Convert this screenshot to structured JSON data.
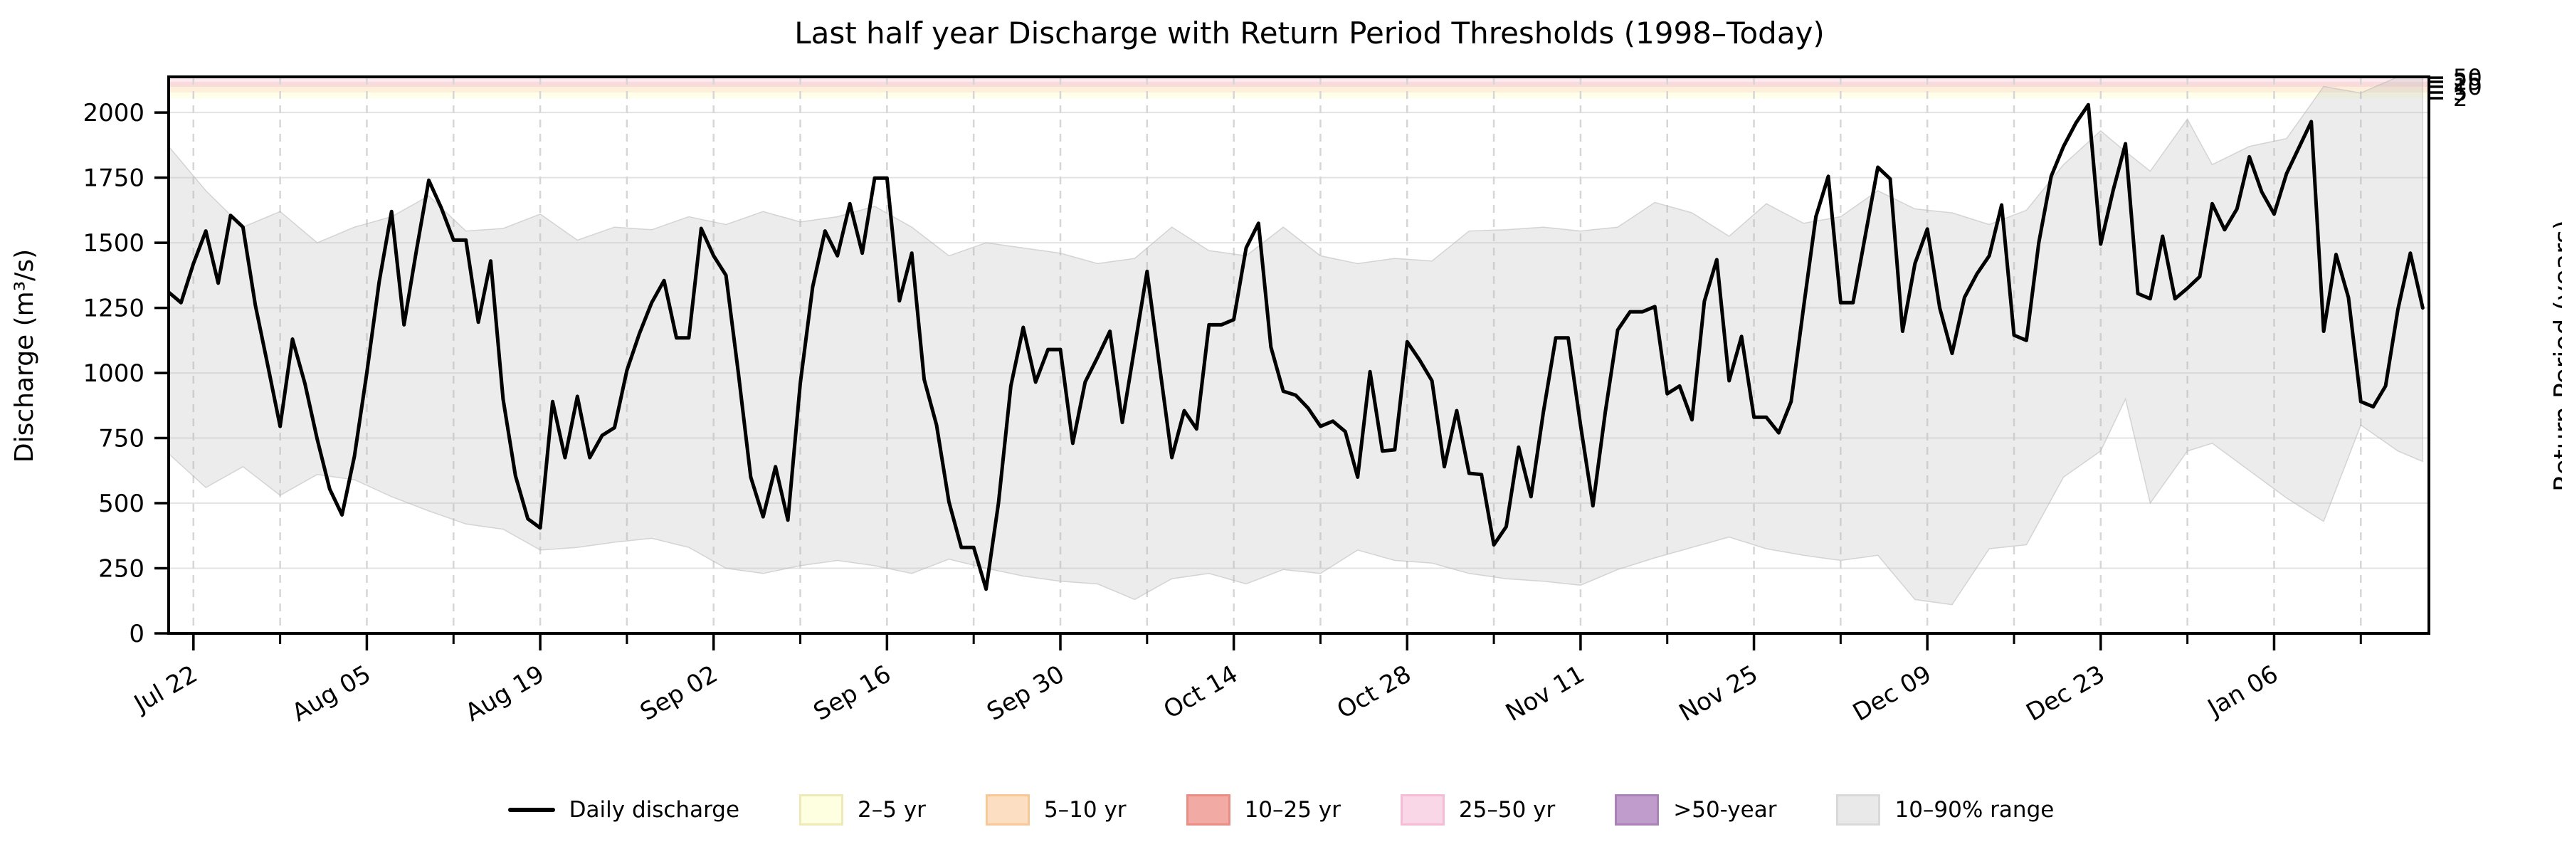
{
  "title": "Last half year Discharge with Return Period Thresholds (1998–Today)",
  "axes": {
    "y_left": {
      "label": "Discharge (m³/s)",
      "tick_values": [
        0,
        250,
        500,
        750,
        1000,
        1250,
        1500,
        1750,
        2000
      ]
    },
    "y_right": {
      "label": "Return Period (years)",
      "tick_labels": [
        "50",
        "25",
        "10",
        "5",
        "2"
      ]
    },
    "x": {
      "major_tick_labels": [
        "Jul 22",
        "Aug 05",
        "Aug 19",
        "Sep 02",
        "Sep 16",
        "Sep 30",
        "Oct 14",
        "Oct 28",
        "Nov 11",
        "Nov 25",
        "Dec 09",
        "Dec 23",
        "Jan 06"
      ]
    }
  },
  "chart_data": {
    "type": "line",
    "title": "Last half year Discharge with Return Period Thresholds (1998–Today)",
    "xlabel": "",
    "ylabel": "Discharge (m³/s)",
    "ylabel_right": "Return Period (years)",
    "ylim": [
      0,
      2137
    ],
    "grid": {
      "horizontal": "solid",
      "vertical": "dashed-weekly"
    },
    "legend_position": "bottom-center",
    "x_axis": {
      "start_date": "Jul 20",
      "end_date": "Jan 18",
      "days_span": 182.5,
      "major_ticks": [
        {
          "day": 2,
          "label": "Jul 22"
        },
        {
          "day": 16,
          "label": "Aug 05"
        },
        {
          "day": 30,
          "label": "Aug 19"
        },
        {
          "day": 44,
          "label": "Sep 02"
        },
        {
          "day": 58,
          "label": "Sep 16"
        },
        {
          "day": 72,
          "label": "Sep 30"
        },
        {
          "day": 86,
          "label": "Oct 14"
        },
        {
          "day": 100,
          "label": "Oct 28"
        },
        {
          "day": 114,
          "label": "Nov 11"
        },
        {
          "day": 128,
          "label": "Nov 25"
        },
        {
          "day": 142,
          "label": "Dec 09"
        },
        {
          "day": 156,
          "label": "Dec 23"
        },
        {
          "day": 170,
          "label": "Jan 06"
        }
      ],
      "minor_tick_days": [
        9,
        23,
        37,
        51,
        65,
        79,
        93,
        107,
        121,
        135,
        149,
        163,
        177
      ]
    },
    "y_ticks": [
      0,
      250,
      500,
      750,
      1000,
      1250,
      1500,
      1750,
      2000
    ],
    "dates": [
      "Jul 20",
      "Jul 21",
      "Jul 22",
      "Jul 23",
      "Jul 24",
      "Jul 25",
      "Jul 26",
      "Jul 27",
      "Jul 28",
      "Jul 29",
      "Jul 30",
      "Jul 31",
      "Aug 01",
      "Aug 02",
      "Aug 03",
      "Aug 04",
      "Aug 05",
      "Aug 06",
      "Aug 07",
      "Aug 08",
      "Aug 09",
      "Aug 10",
      "Aug 11",
      "Aug 12",
      "Aug 13",
      "Aug 14",
      "Aug 15",
      "Aug 16",
      "Aug 17",
      "Aug 18",
      "Aug 19",
      "Aug 20",
      "Aug 21",
      "Aug 22",
      "Aug 23",
      "Aug 24",
      "Aug 25",
      "Aug 26",
      "Aug 27",
      "Aug 28",
      "Aug 29",
      "Aug 30",
      "Aug 31",
      "Sep 01",
      "Sep 02",
      "Sep 03",
      "Sep 04",
      "Sep 05",
      "Sep 06",
      "Sep 07",
      "Sep 08",
      "Sep 09",
      "Sep 10",
      "Sep 11",
      "Sep 12",
      "Sep 13",
      "Sep 14",
      "Sep 15",
      "Sep 16",
      "Sep 17",
      "Sep 18",
      "Sep 19",
      "Sep 20",
      "Sep 21",
      "Sep 22",
      "Sep 23",
      "Sep 24",
      "Sep 25",
      "Sep 26",
      "Sep 27",
      "Sep 28",
      "Sep 29",
      "Sep 30",
      "Oct 01",
      "Oct 02",
      "Oct 03",
      "Oct 04",
      "Oct 05",
      "Oct 06",
      "Oct 07",
      "Oct 08",
      "Oct 09",
      "Oct 10",
      "Oct 11",
      "Oct 12",
      "Oct 13",
      "Oct 14",
      "Oct 15",
      "Oct 16",
      "Oct 17",
      "Oct 18",
      "Oct 19",
      "Oct 20",
      "Oct 21",
      "Oct 22",
      "Oct 23",
      "Oct 24",
      "Oct 25",
      "Oct 26",
      "Oct 27",
      "Oct 28",
      "Oct 29",
      "Oct 30",
      "Oct 31",
      "Nov 01",
      "Nov 02",
      "Nov 03",
      "Nov 04",
      "Nov 05",
      "Nov 06",
      "Nov 07",
      "Nov 08",
      "Nov 09",
      "Nov 10",
      "Nov 11",
      "Nov 12",
      "Nov 13",
      "Nov 14",
      "Nov 15",
      "Nov 16",
      "Nov 17",
      "Nov 18",
      "Nov 19",
      "Nov 20",
      "Nov 21",
      "Nov 22",
      "Nov 23",
      "Nov 24",
      "Nov 25",
      "Nov 26",
      "Nov 27",
      "Nov 28",
      "Nov 29",
      "Nov 30",
      "Dec 01",
      "Dec 02",
      "Dec 03",
      "Dec 04",
      "Dec 05",
      "Dec 06",
      "Dec 07",
      "Dec 08",
      "Dec 09",
      "Dec 10",
      "Dec 11",
      "Dec 12",
      "Dec 13",
      "Dec 14",
      "Dec 15",
      "Dec 16",
      "Dec 17",
      "Dec 18",
      "Dec 19",
      "Dec 20",
      "Dec 21",
      "Dec 22",
      "Dec 23",
      "Dec 24",
      "Dec 25",
      "Dec 26",
      "Dec 27",
      "Dec 28",
      "Dec 29",
      "Dec 30",
      "Dec 31",
      "Jan 01",
      "Jan 02",
      "Jan 03",
      "Jan 04",
      "Jan 05",
      "Jan 06",
      "Jan 07",
      "Jan 08",
      "Jan 09",
      "Jan 10",
      "Jan 11",
      "Jan 12",
      "Jan 13",
      "Jan 14",
      "Jan 15",
      "Jan 16",
      "Jan 17",
      "Jan 18"
    ],
    "series": [
      {
        "name": "Daily discharge",
        "color": "#000000",
        "values": [
          1310,
          1270,
          1420,
          1545,
          1345,
          1605,
          1560,
          1260,
          1030,
          795,
          1130,
          960,
          745,
          555,
          455,
          680,
          1000,
          1350,
          1620,
          1185,
          1470,
          1740,
          1635,
          1510,
          1510,
          1195,
          1430,
          900,
          605,
          440,
          405,
          890,
          675,
          910,
          675,
          760,
          790,
          1010,
          1150,
          1270,
          1355,
          1135,
          1135,
          1555,
          1450,
          1375,
          1000,
          600,
          448,
          640,
          435,
          960,
          1330,
          1545,
          1450,
          1650,
          1460,
          1748,
          1748,
          1277,
          1460,
          975,
          800,
          505,
          330,
          330,
          170,
          500,
          950,
          1175,
          965,
          1090,
          1090,
          730,
          965,
          1060,
          1160,
          810,
          1100,
          1390,
          1030,
          675,
          855,
          785,
          1185,
          1185,
          1205,
          1480,
          1575,
          1100,
          930,
          915,
          865,
          795,
          815,
          775,
          600,
          1005,
          700,
          705,
          1120,
          1050,
          970,
          640,
          855,
          615,
          610,
          340,
          410,
          715,
          525,
          850,
          1135,
          1135,
          800,
          490,
          850,
          1165,
          1235,
          1235,
          1255,
          920,
          950,
          820,
          1275,
          1435,
          970,
          1140,
          830,
          830,
          770,
          890,
          1250,
          1600,
          1755,
          1270,
          1270,
          1530,
          1790,
          1745,
          1160,
          1420,
          1553,
          1250,
          1075,
          1290,
          1380,
          1450,
          1645,
          1145,
          1125,
          1500,
          1755,
          1870,
          1960,
          2030,
          1495,
          1700,
          1880,
          1305,
          1285,
          1525,
          1285,
          1325,
          1370,
          1650,
          1550,
          1630,
          1830,
          1695,
          1610,
          1765,
          1865,
          1965,
          1160,
          1455,
          1290,
          890,
          870,
          950,
          1245,
          1460,
          1250
        ]
      }
    ],
    "band": {
      "name": "10–90% range",
      "interpolation": "linear",
      "node_days": [
        0,
        3,
        6,
        9,
        12,
        15,
        18,
        21,
        24,
        27,
        30,
        33,
        36,
        39,
        42,
        45,
        48,
        51,
        54,
        57,
        60,
        63,
        66,
        69,
        72,
        75,
        78,
        81,
        84,
        87,
        90,
        93,
        96,
        99,
        102,
        105,
        108,
        111,
        114,
        117,
        120,
        123,
        126,
        129,
        132,
        135,
        138,
        141,
        144,
        147,
        150,
        153,
        156,
        158,
        160,
        163,
        165,
        168,
        171,
        174,
        177,
        180,
        182
      ],
      "upper": [
        1870,
        1700,
        1560,
        1620,
        1500,
        1560,
        1600,
        1680,
        1545,
        1555,
        1610,
        1510,
        1560,
        1550,
        1600,
        1570,
        1620,
        1580,
        1600,
        1640,
        1560,
        1450,
        1500,
        1480,
        1460,
        1420,
        1440,
        1560,
        1470,
        1450,
        1560,
        1450,
        1420,
        1440,
        1430,
        1545,
        1550,
        1560,
        1545,
        1560,
        1655,
        1615,
        1525,
        1650,
        1575,
        1600,
        1700,
        1630,
        1615,
        1570,
        1625,
        1800,
        1930,
        1850,
        1775,
        1975,
        1800,
        1870,
        1900,
        2100,
        2075,
        2137,
        2137
      ],
      "lower": [
        690,
        560,
        640,
        530,
        610,
        590,
        525,
        470,
        420,
        400,
        320,
        330,
        350,
        365,
        330,
        250,
        230,
        260,
        280,
        260,
        230,
        285,
        250,
        220,
        200,
        190,
        130,
        210,
        230,
        190,
        245,
        230,
        320,
        280,
        270,
        230,
        210,
        200,
        185,
        245,
        290,
        330,
        370,
        325,
        300,
        280,
        300,
        130,
        110,
        325,
        340,
        600,
        700,
        900,
        500,
        700,
        730,
        625,
        520,
        430,
        800,
        700,
        660
      ]
    },
    "thresholds": [
      {
        "return_period": 2,
        "discharge": 2055
      },
      {
        "return_period": 5,
        "discharge": 2077
      },
      {
        "return_period": 10,
        "discharge": 2099
      },
      {
        "return_period": 25,
        "discharge": 2118
      },
      {
        "return_period": 50,
        "discharge": 2134
      }
    ]
  },
  "legend": {
    "items": [
      {
        "key": "daily-discharge",
        "type": "line",
        "label": "Daily discharge",
        "color": "#000000",
        "border": "#000000"
      },
      {
        "key": "band-2-5yr",
        "type": "patch",
        "label": "2–5 yr",
        "color": "#fefee0",
        "border": "#eeeab8"
      },
      {
        "key": "band-5-10yr",
        "type": "patch",
        "label": "5–10 yr",
        "color": "#fcdfc2",
        "border": "#f8c896"
      },
      {
        "key": "band-10-25yr",
        "type": "patch",
        "label": "10–25 yr",
        "color": "#f1aaa4",
        "border": "#ea8d85"
      },
      {
        "key": "band-25-50yr",
        "type": "patch",
        "label": "25–50 yr",
        "color": "#fad7e6",
        "border": "#f5bcd5"
      },
      {
        "key": "band-gt50yr",
        "type": "patch",
        "label": ">50-year",
        "color": "#bf9ccb",
        "border": "#aa82b8"
      },
      {
        "key": "band-10-90pct",
        "type": "patch",
        "label": "10–90% range",
        "color": "#e9e9e9",
        "border": "#d9d9d9"
      }
    ]
  },
  "colors": {
    "line": "#000000",
    "percentile_band_fill": "#bbbbbb",
    "grid_horizontal": "#e3e3e3",
    "grid_vertical": "#d6d6d6",
    "spine": "#000000",
    "background": "#ffffff",
    "strip_2_5": "rgba(255,255,170,0.25)",
    "strip_5_10": "rgba(253,191,111,0.25)",
    "strip_10_25": "rgba(227,93,81,0.22)",
    "strip_25_50": "rgba(247,167,204,0.25)",
    "strip_gt50": "rgba(150,100,170,0.25)"
  }
}
